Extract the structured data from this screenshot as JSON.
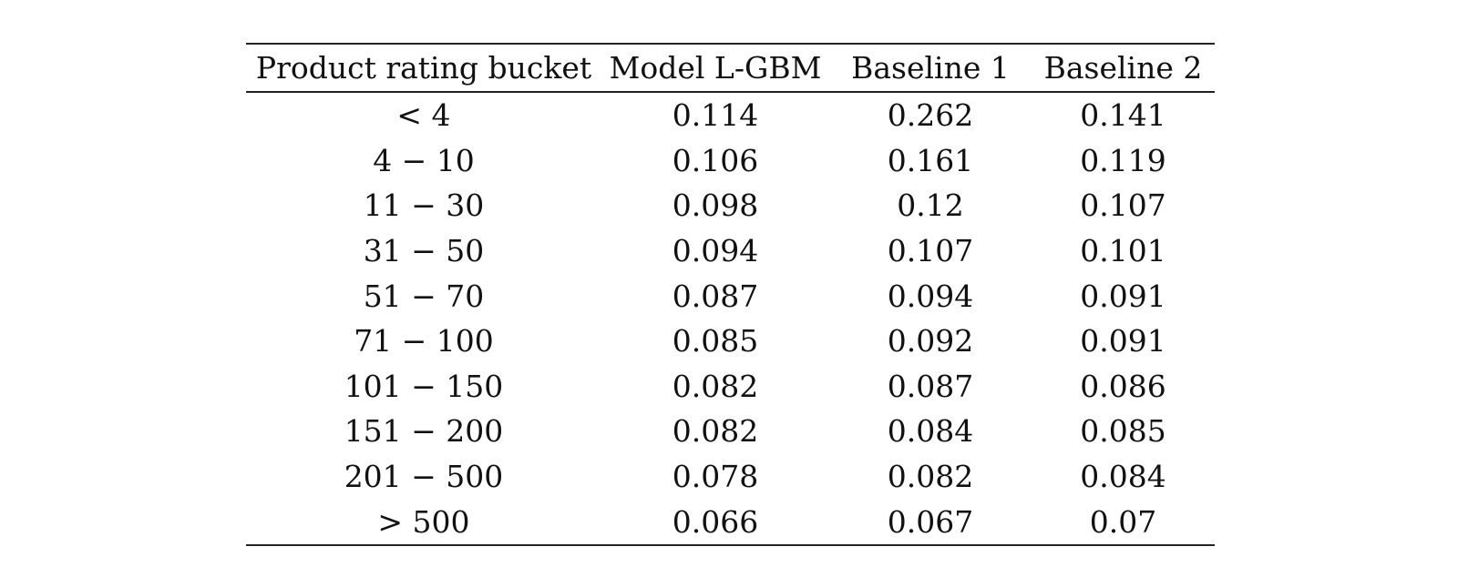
{
  "table": {
    "headers": [
      "Product rating bucket",
      "Model L-GBM",
      "Baseline 1",
      "Baseline 2"
    ],
    "rows": [
      [
        "< 4",
        "0.114",
        "0.262",
        "0.141"
      ],
      [
        "4 − 10",
        "0.106",
        "0.161",
        "0.119"
      ],
      [
        "11 − 30",
        "0.098",
        "0.12",
        "0.107"
      ],
      [
        "31 − 50",
        "0.094",
        "0.107",
        "0.101"
      ],
      [
        "51 − 70",
        "0.087",
        "0.094",
        "0.091"
      ],
      [
        "71 − 100",
        "0.085",
        "0.092",
        "0.091"
      ],
      [
        "101 − 150",
        "0.082",
        "0.087",
        "0.086"
      ],
      [
        "151 − 200",
        "0.082",
        "0.084",
        "0.085"
      ],
      [
        "201 − 500",
        "0.078",
        "0.082",
        "0.084"
      ],
      [
        "> 500",
        "0.066",
        "0.067",
        "0.07"
      ]
    ]
  }
}
